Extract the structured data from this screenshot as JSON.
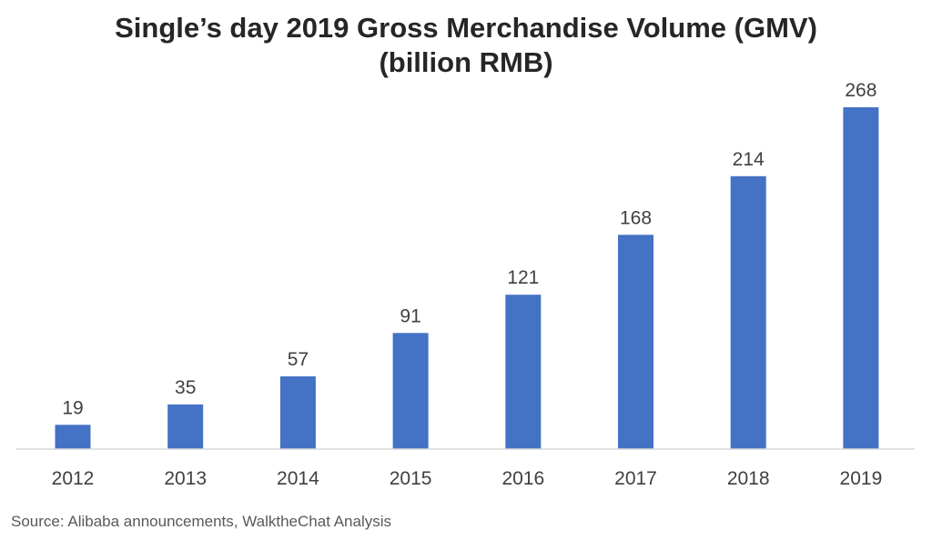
{
  "chart_data": {
    "type": "bar",
    "title_lines": [
      "Single’s day 2019 Gross Merchandise Volume (GMV)",
      "(billion RMB)"
    ],
    "categories": [
      "2012",
      "2013",
      "2014",
      "2015",
      "2016",
      "2017",
      "2018",
      "2019"
    ],
    "values": [
      19,
      35,
      57,
      91,
      121,
      168,
      214,
      268
    ],
    "xlabel": "",
    "ylabel": "",
    "ylim": [
      0,
      268
    ],
    "grid": false,
    "legend": "none",
    "data_labels": true,
    "bar_color": "#4472C4",
    "axis_color": "#D9D9D9"
  },
  "source": "Source: Alibaba announcements, WalktheChat Analysis"
}
